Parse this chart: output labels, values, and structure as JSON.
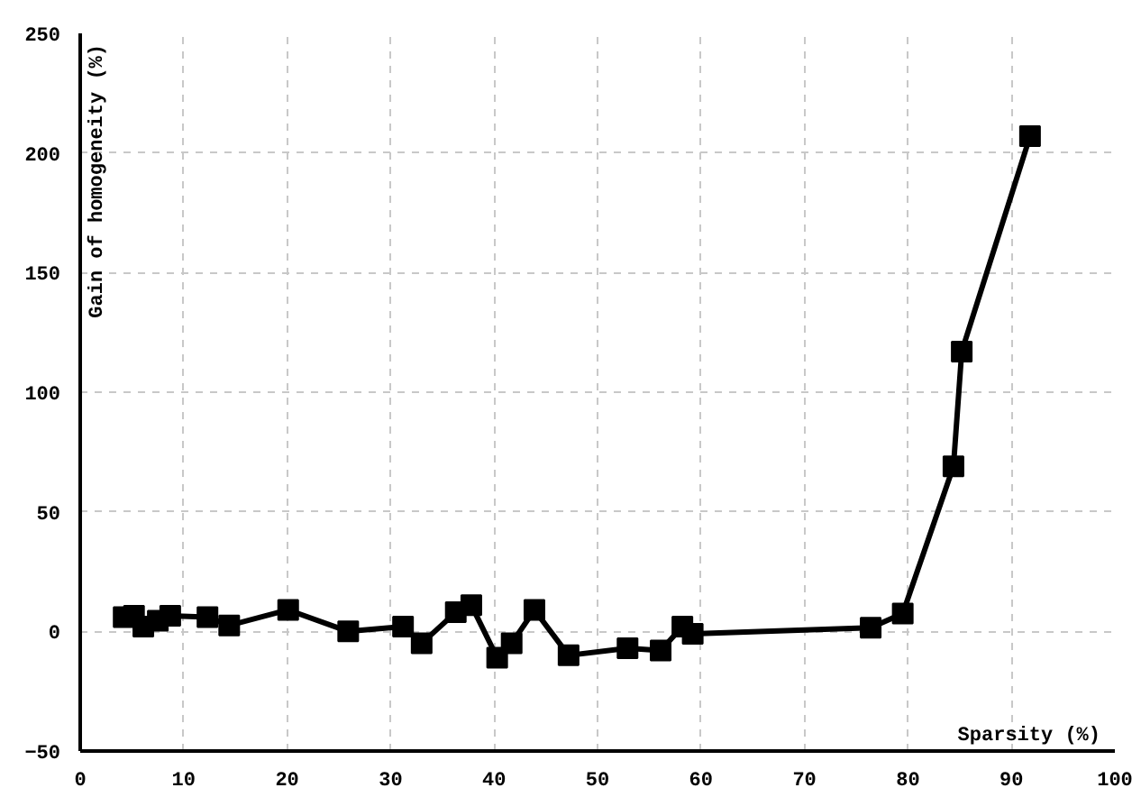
{
  "chart_data": {
    "type": "line",
    "xlabel": "Sparsity (%)",
    "ylabel": "Gain of homogeneity (%)",
    "x": [
      4.2,
      5.2,
      6.1,
      7.5,
      8.7,
      12.3,
      14.4,
      20.1,
      25.9,
      31.2,
      33,
      36.3,
      37.8,
      40.3,
      41.7,
      43.9,
      47.2,
      52.9,
      56.1,
      58.2,
      59.2,
      76.4,
      79.5,
      84.4,
      85.2,
      91.8
    ],
    "series": [
      {
        "color": "#000000",
        "values": [
          6,
          6.5,
          2,
          4.5,
          6.5,
          6,
          2.5,
          9,
          0,
          2,
          -5,
          8,
          11,
          -11,
          -5,
          9,
          -10,
          -7,
          -8,
          2,
          -1,
          1.5,
          7.5,
          69,
          117,
          207
        ]
      }
    ],
    "xlim": [
      0,
      100
    ],
    "ylim": [
      -50,
      250
    ],
    "xticks": [
      0,
      10,
      20,
      30,
      40,
      50,
      60,
      70,
      80,
      90,
      100
    ],
    "yticks": [
      -50,
      0,
      50,
      100,
      150,
      200,
      250
    ],
    "grid": true,
    "marker": "square",
    "line_style": "solid"
  }
}
